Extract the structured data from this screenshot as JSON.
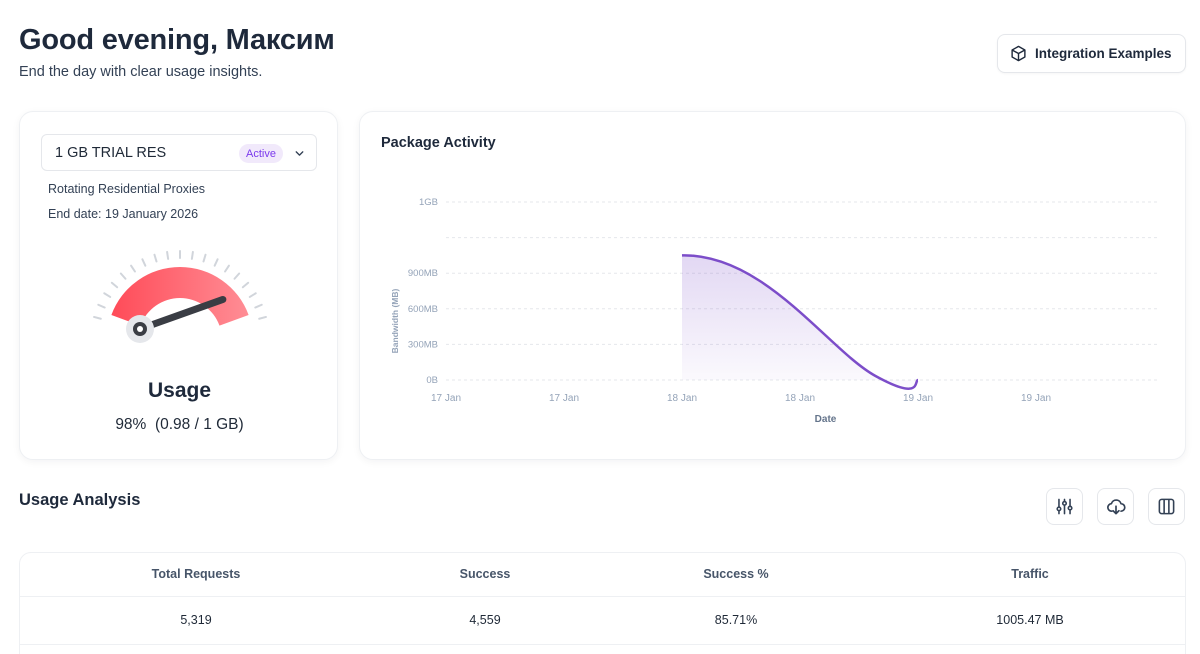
{
  "header": {
    "greeting": "Good evening, Максим",
    "subtitle": "End the day with clear usage insights.",
    "integration_button": "Integration Examples"
  },
  "package": {
    "name": "1 GB TRIAL RES",
    "status": "Active",
    "type": "Rotating Residential Proxies",
    "end_date": "End date: 19 January 2026",
    "usage_title": "Usage",
    "usage_value": "98%  (0.98 / 1 GB)",
    "usage_fraction": 0.98
  },
  "activity": {
    "title": "Package Activity"
  },
  "chart_data": {
    "type": "area",
    "title": "Package Activity",
    "xlabel": "Date",
    "ylabel": "Bandwidth (MB)",
    "x_ticks": [
      "17 Jan",
      "17 Jan",
      "18 Jan",
      "18 Jan",
      "19 Jan",
      "19 Jan"
    ],
    "y_ticks": [
      "0B",
      "300MB",
      "600MB",
      "900MB",
      "1GB"
    ],
    "series": [
      {
        "x": [
          2,
          4
        ],
        "values": [
          1050,
          0
        ]
      }
    ],
    "ylim": [
      0,
      1500
    ],
    "grid": true,
    "color": "#7c4dc9"
  },
  "analysis": {
    "title": "Usage Analysis",
    "columns": [
      "Total Requests",
      "Success",
      "Success %",
      "Traffic"
    ],
    "rows": [
      [
        "5,319",
        "4,559",
        "85.71%",
        "1005.47 MB"
      ]
    ]
  },
  "colors": {
    "accent": "#7c4dc9",
    "gauge_fill": "#ff5a64",
    "badge_bg": "#f1e9fb",
    "badge_text": "#7c3aed"
  }
}
